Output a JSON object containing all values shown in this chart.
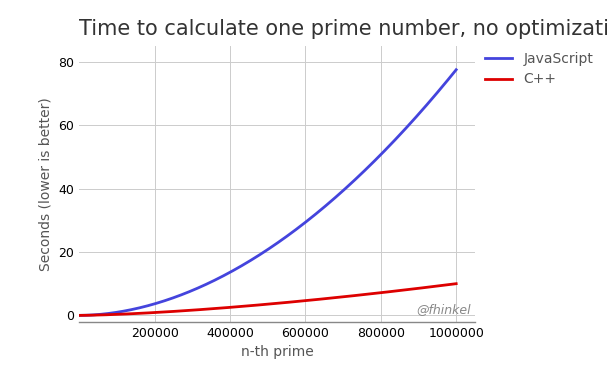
{
  "title": "Time to calculate one prime number, no optimizations",
  "xlabel": "n-th prime",
  "ylabel": "Seconds (lower is better)",
  "xlim": [
    0,
    1050000
  ],
  "ylim": [
    -2,
    85
  ],
  "yticks": [
    0,
    20,
    40,
    60,
    80
  ],
  "xticks": [
    200000,
    400000,
    600000,
    800000,
    1000000
  ],
  "xtick_labels": [
    "200000",
    "400000",
    "600000",
    "800000",
    "1000000"
  ],
  "series": [
    {
      "label": "JavaScript",
      "color": "#4444dd",
      "x_scale": 1000000,
      "y_end": 77.5,
      "power": 1.9
    },
    {
      "label": "C++",
      "color": "#dd0000",
      "x_scale": 1000000,
      "y_end": 10.0,
      "power": 1.5
    }
  ],
  "legend_loc": "upper right",
  "grid": true,
  "background_color": "#ffffff",
  "watermark": "@fhinkel",
  "title_fontsize": 15,
  "label_fontsize": 10,
  "tick_fontsize": 9,
  "legend_fontsize": 10,
  "line_width": 2.0
}
